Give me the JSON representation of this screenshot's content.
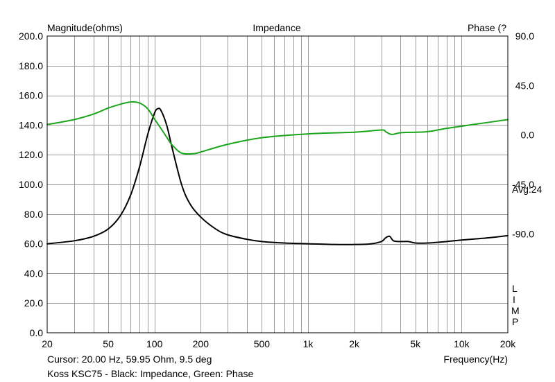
{
  "chart_data": {
    "type": "line",
    "title": "Impedance",
    "left_axis_label": "Magnitude(ohms)",
    "right_axis_label": "Phase (?",
    "xlabel": "Frequency(Hz)",
    "x_scale": "log",
    "xlim": [
      20,
      20000
    ],
    "ylim": [
      0,
      200
    ],
    "y2lim": [
      -180,
      90
    ],
    "grid": true,
    "x_ticks": [
      {
        "value": 20,
        "label": "20"
      },
      {
        "value": 50,
        "label": "50"
      },
      {
        "value": 100,
        "label": "100"
      },
      {
        "value": 200,
        "label": "200"
      },
      {
        "value": 500,
        "label": "500"
      },
      {
        "value": 1000,
        "label": "1k"
      },
      {
        "value": 2000,
        "label": "2k"
      },
      {
        "value": 5000,
        "label": "5k"
      },
      {
        "value": 10000,
        "label": "10k"
      },
      {
        "value": 20000,
        "label": "20k"
      }
    ],
    "y_ticks": [
      {
        "value": 0,
        "label": "0.0"
      },
      {
        "value": 20,
        "label": "20.0"
      },
      {
        "value": 40,
        "label": "40.0"
      },
      {
        "value": 60,
        "label": "60.0"
      },
      {
        "value": 80,
        "label": "80.0"
      },
      {
        "value": 100,
        "label": "100.0"
      },
      {
        "value": 120,
        "label": "120.0"
      },
      {
        "value": 140,
        "label": "140.0"
      },
      {
        "value": 160,
        "label": "160.0"
      },
      {
        "value": 180,
        "label": "180.0"
      },
      {
        "value": 200,
        "label": "200.0"
      }
    ],
    "y2_ticks": [
      {
        "value": 90,
        "label": "90.0"
      },
      {
        "value": 45,
        "label": "45.0"
      },
      {
        "value": 0,
        "label": "0.0"
      },
      {
        "value": -45,
        "label": "-45.0"
      },
      {
        "value": -90,
        "label": "-90.0"
      }
    ],
    "series": [
      {
        "axis": "left",
        "color": "#000000",
        "x": [
          20,
          30,
          40,
          50,
          60,
          70,
          80,
          90,
          100,
          105,
          110,
          120,
          130,
          150,
          170,
          200,
          250,
          300,
          400,
          500,
          700,
          1000,
          1500,
          2000,
          2500,
          3000,
          3200,
          3400,
          3600,
          4000,
          4500,
          5000,
          6000,
          8000,
          10000,
          15000,
          20000
        ],
        "y": [
          60,
          62,
          65,
          70,
          79,
          93,
          112,
          133,
          148,
          151,
          150,
          140,
          125,
          100,
          87,
          78,
          70,
          66,
          63,
          61.5,
          60.5,
          60,
          59.5,
          59.5,
          59.8,
          61.5,
          64,
          65,
          62,
          61.5,
          61.5,
          60.5,
          60.5,
          61.5,
          62.5,
          64,
          65.5
        ]
      },
      {
        "axis": "right",
        "color": "#1aa51a",
        "x": [
          20,
          30,
          40,
          50,
          60,
          70,
          80,
          90,
          100,
          110,
          120,
          130,
          150,
          180,
          200,
          300,
          500,
          1000,
          2000,
          3000,
          3200,
          3500,
          4000,
          5000,
          6000,
          8000,
          10000,
          15000,
          20000
        ],
        "y": [
          9.5,
          14,
          19,
          24.5,
          28,
          30,
          29,
          24,
          14.5,
          6,
          -2,
          -9,
          -16.5,
          -17,
          -15.5,
          -8.5,
          -2.5,
          1,
          2.5,
          4.5,
          3,
          0.5,
          2,
          2.5,
          3,
          6,
          8,
          11.5,
          14
        ]
      }
    ],
    "annotations": [
      "Avg:24",
      "Cursor: 20.00 Hz, 59.95 Ohm, 9.5 deg",
      "Koss KSC75 - Black: Impedance, Green: Phase",
      "LIMP"
    ],
    "colors": {
      "grid": "#9a9a9a",
      "impedance": "#000000",
      "phase": "#1aa51a"
    }
  },
  "labels": {
    "avg": "Avg:24",
    "cursor": "Cursor: 20.00 Hz, 59.95 Ohm, 9.5 deg",
    "caption": "Koss KSC75 - Black: Impedance, Green: Phase",
    "app_letters": [
      "L",
      "I",
      "M",
      "P"
    ]
  }
}
